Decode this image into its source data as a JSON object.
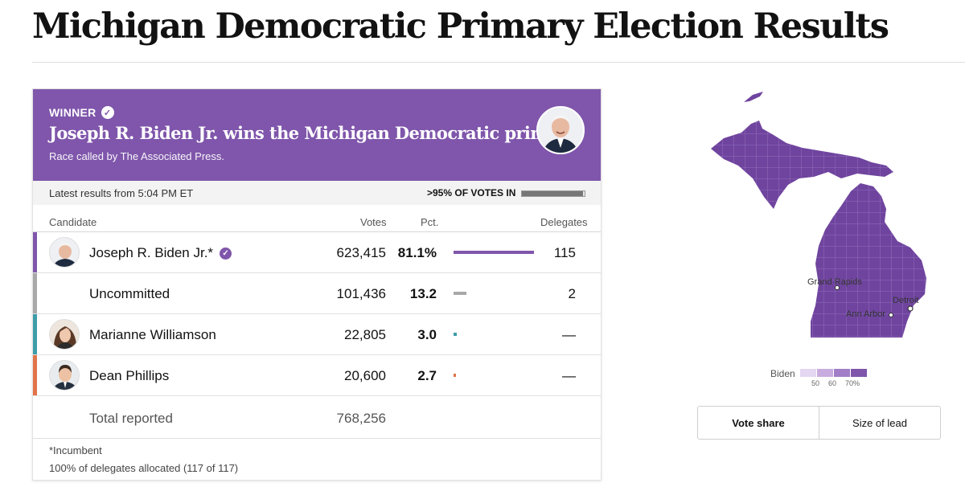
{
  "page": {
    "title": "Michigan Democratic Primary Election Results"
  },
  "colors": {
    "winner": "#7f56ab",
    "uncommitted": "#a8a8a8",
    "williamson": "#3d9ca8",
    "phillips": "#e2744a"
  },
  "banner": {
    "winner_label": "WINNER",
    "headline": "Joseph R. Biden Jr. wins the Michigan Democratic primary.",
    "subtext": "Race called by The Associated Press."
  },
  "status": {
    "latest": "Latest results from 5:04 PM ET",
    "votes_in": ">95% OF VOTES IN",
    "votes_in_fraction": 0.98
  },
  "table": {
    "headers": {
      "candidate": "Candidate",
      "votes": "Votes",
      "pct": "Pct.",
      "delegates": "Delegates"
    },
    "rows": [
      {
        "name": "Joseph R. Biden Jr.*",
        "votes": "623,415",
        "pct": "81.1%",
        "pct_value": 81.1,
        "delegates": "115",
        "color": "#7f56ab",
        "photo": "biden-photo",
        "verified": true
      },
      {
        "name": "Uncommitted",
        "votes": "101,436",
        "pct": "13.2",
        "pct_value": 13.2,
        "delegates": "2",
        "color": "#a8a8a8",
        "photo": null,
        "verified": false
      },
      {
        "name": "Marianne Williamson",
        "votes": "22,805",
        "pct": "3.0",
        "pct_value": 3.0,
        "delegates": "—",
        "color": "#3d9ca8",
        "photo": "williamson-photo",
        "verified": false
      },
      {
        "name": "Dean Phillips",
        "votes": "20,600",
        "pct": "2.7",
        "pct_value": 2.7,
        "delegates": "—",
        "color": "#e2744a",
        "photo": "phillips-photo",
        "verified": false
      }
    ],
    "total": {
      "label": "Total reported",
      "votes": "768,256"
    },
    "footnotes": {
      "incumbent": "*Incumbent",
      "delegates": "100% of delegates allocated (117 of 117)"
    }
  },
  "map": {
    "cities": {
      "grand_rapids": "Grand Rapids",
      "detroit": "Detroit",
      "ann_arbor": "Ann Arbor"
    }
  },
  "legend": {
    "label": "Biden",
    "ticks": [
      "50",
      "60",
      "70%"
    ],
    "colors": [
      "#e4d7f2",
      "#c8acdf",
      "#a17ec7",
      "#7f56ab"
    ]
  },
  "toggles": {
    "vote_share": "Vote share",
    "size_of_lead": "Size of lead"
  }
}
